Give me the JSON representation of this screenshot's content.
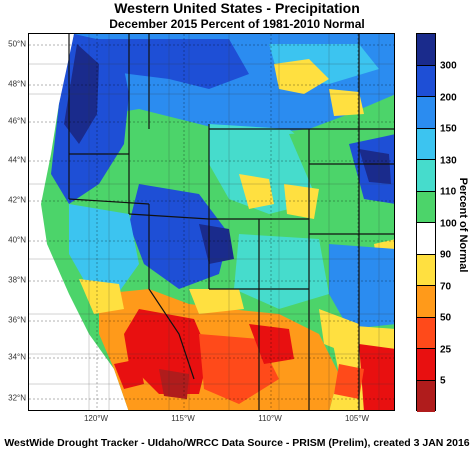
{
  "title": "Western United States - Precipitation",
  "subtitle": "December 2015  Percent of 1981-2010 Normal",
  "footer": "WestWide Drought Tracker - UIdaho/WRCC  Data Source - PRISM (Prelim), created  3 JAN 2016",
  "legend": {
    "title": "Percent of Normal",
    "ticks": [
      "300",
      "200",
      "150",
      "130",
      "110",
      "100",
      "90",
      "70",
      "50",
      "25",
      "5"
    ],
    "colors": [
      "#1a2b8c",
      "#1e4fd6",
      "#2b8cf0",
      "#3cc4f0",
      "#46dccc",
      "#4cd46a",
      "#ffffff",
      "#ffe040",
      "#ff9a1a",
      "#ff4a1a",
      "#e81010",
      "#b01c1c"
    ]
  },
  "axes": {
    "lat_labels": [
      "50°N",
      "48°N",
      "46°N",
      "44°N",
      "42°N",
      "40°N",
      "38°N",
      "36°N",
      "34°N",
      "32°N"
    ],
    "lon_labels": [
      "120°W",
      "115°W",
      "110°W",
      "105°W"
    ]
  }
}
